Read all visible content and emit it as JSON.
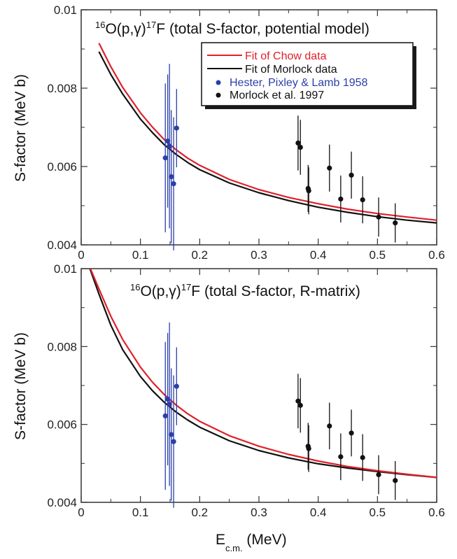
{
  "colors": {
    "chow_fit": "#e0202a",
    "morlock_fit": "#111111",
    "hester_data": "#2b3fa8",
    "morlock_data": "#111111"
  },
  "xlabel": {
    "main": "E",
    "subscript": "c.m.",
    "unit": " (MeV)"
  },
  "chart_data": [
    {
      "type": "line",
      "title": {
        "sup1": "16",
        "part1": "O(p,γ)",
        "sup2": "17",
        "part2": "F (total S-factor, potential model)"
      },
      "ylabel": "S-factor (MeV b)",
      "xlim": [
        0,
        0.6
      ],
      "ylim": [
        0.004,
        0.01
      ],
      "x_ticks": [
        "0",
        "0.1",
        "0.2",
        "0.3",
        "0.4",
        "0.5",
        "0.6"
      ],
      "y_ticks": [
        "0.004",
        "0.006",
        "0.008",
        "0.01"
      ],
      "legend": {
        "position": "top-right",
        "items": [
          {
            "label": "Fit of Chow data",
            "kind": "line",
            "color_key": "chow_fit"
          },
          {
            "label": "Fit of Morlock data",
            "kind": "line",
            "color_key": "morlock_fit"
          },
          {
            "label": "Hester, Pixley & Lamb 1958",
            "kind": "point",
            "color_key": "hester_data"
          },
          {
            "label": "Morlock et al. 1997",
            "kind": "point",
            "color_key": "morlock_data"
          }
        ]
      },
      "series": [
        {
          "name": "Fit of Chow data",
          "kind": "line",
          "color_key": "chow_fit",
          "x": [
            0.03,
            0.05,
            0.07,
            0.1,
            0.12,
            0.14,
            0.16,
            0.18,
            0.2,
            0.25,
            0.3,
            0.35,
            0.4,
            0.45,
            0.5,
            0.55,
            0.6
          ],
          "y": [
            0.00915,
            0.00855,
            0.00802,
            0.00737,
            0.00701,
            0.00669,
            0.00643,
            0.00621,
            0.00603,
            0.00567,
            0.00541,
            0.00521,
            0.00505,
            0.00491,
            0.0048,
            0.00471,
            0.00463
          ]
        },
        {
          "name": "Fit of Morlock data",
          "kind": "line",
          "color_key": "morlock_fit",
          "x": [
            0.03,
            0.05,
            0.07,
            0.1,
            0.12,
            0.14,
            0.16,
            0.18,
            0.2,
            0.25,
            0.3,
            0.35,
            0.4,
            0.45,
            0.5,
            0.55,
            0.6
          ],
          "y": [
            0.00893,
            0.00835,
            0.00785,
            0.00721,
            0.00687,
            0.00656,
            0.00631,
            0.0061,
            0.00592,
            0.00558,
            0.00533,
            0.00513,
            0.00496,
            0.00483,
            0.00472,
            0.00463,
            0.00456
          ]
        },
        {
          "name": "Hester, Pixley & Lamb 1958",
          "kind": "points",
          "color_key": "hester_data",
          "x": [
            0.142,
            0.146,
            0.149,
            0.152,
            0.156,
            0.161
          ],
          "y": [
            0.00622,
            0.00665,
            0.00652,
            0.00574,
            0.00556,
            0.00698
          ],
          "err": [
            0.0019,
            0.0017,
            0.0021,
            0.0017,
            0.0017,
            0.001
          ]
        },
        {
          "name": "Morlock et al. 1997",
          "kind": "points",
          "color_key": "morlock_data",
          "x": [
            0.366,
            0.37,
            0.383,
            0.384,
            0.419,
            0.438,
            0.456,
            0.475,
            0.502,
            0.53
          ],
          "y": [
            0.0066,
            0.00649,
            0.00544,
            0.00538,
            0.00596,
            0.00517,
            0.00578,
            0.00515,
            0.00471,
            0.00456
          ],
          "err": [
            0.0007,
            0.0007,
            0.0006,
            0.0006,
            0.0006,
            0.0006,
            0.0006,
            0.0006,
            0.0005,
            0.0005
          ]
        }
      ]
    },
    {
      "type": "line",
      "title": {
        "sup1": "16",
        "part1": "O(p,γ)",
        "sup2": "17",
        "part2": "F (total S-factor, R-matrix)"
      },
      "ylabel": "S-factor (MeV b)",
      "xlim": [
        0,
        0.6
      ],
      "ylim": [
        0.004,
        0.01
      ],
      "x_ticks": [
        "0",
        "0.1",
        "0.2",
        "0.3",
        "0.4",
        "0.5",
        "0.6"
      ],
      "y_ticks": [
        "0.004",
        "0.006",
        "0.008",
        "0.01"
      ],
      "series": [
        {
          "name": "Fit of Chow data",
          "kind": "line",
          "color_key": "chow_fit",
          "x": [
            0.01,
            0.03,
            0.05,
            0.07,
            0.1,
            0.12,
            0.14,
            0.16,
            0.18,
            0.2,
            0.25,
            0.3,
            0.35,
            0.4,
            0.45,
            0.5,
            0.55,
            0.6
          ],
          "y": [
            0.0102,
            0.00948,
            0.00878,
            0.00818,
            0.00747,
            0.00709,
            0.00677,
            0.0065,
            0.00627,
            0.00608,
            0.00571,
            0.00544,
            0.00523,
            0.00506,
            0.00492,
            0.00481,
            0.00472,
            0.00464
          ]
        },
        {
          "name": "Fit of Morlock data",
          "kind": "line",
          "color_key": "morlock_fit",
          "x": [
            0.01,
            0.03,
            0.05,
            0.07,
            0.1,
            0.12,
            0.14,
            0.16,
            0.18,
            0.2,
            0.25,
            0.3,
            0.35,
            0.4,
            0.45,
            0.5,
            0.55,
            0.6
          ],
          "y": [
            0.0102,
            0.00935,
            0.00855,
            0.00792,
            0.00723,
            0.00687,
            0.00657,
            0.00632,
            0.00611,
            0.00593,
            0.00558,
            0.00533,
            0.00514,
            0.00499,
            0.00488,
            0.00479,
            0.00471,
            0.00464
          ]
        },
        {
          "name": "Hester, Pixley & Lamb 1958",
          "kind": "points",
          "color_key": "hester_data",
          "x": [
            0.142,
            0.146,
            0.149,
            0.152,
            0.156,
            0.161
          ],
          "y": [
            0.00622,
            0.00665,
            0.00652,
            0.00574,
            0.00556,
            0.00698
          ],
          "err": [
            0.0019,
            0.0017,
            0.0021,
            0.0017,
            0.0017,
            0.001
          ]
        },
        {
          "name": "Morlock et al. 1997",
          "kind": "points",
          "color_key": "morlock_data",
          "x": [
            0.366,
            0.37,
            0.383,
            0.384,
            0.419,
            0.438,
            0.456,
            0.475,
            0.502,
            0.53
          ],
          "y": [
            0.0066,
            0.00649,
            0.00544,
            0.00538,
            0.00596,
            0.00517,
            0.00578,
            0.00515,
            0.00471,
            0.00456
          ],
          "err": [
            0.0007,
            0.0007,
            0.0006,
            0.0006,
            0.0006,
            0.0006,
            0.0006,
            0.0006,
            0.0005,
            0.0005
          ]
        }
      ]
    }
  ]
}
